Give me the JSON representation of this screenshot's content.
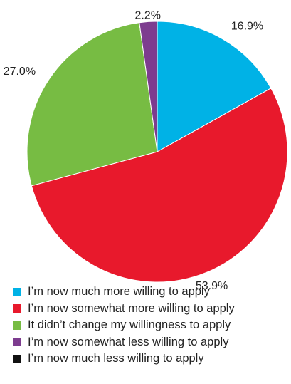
{
  "chart_data": {
    "type": "pie",
    "title": "",
    "slices": [
      {
        "label": "I’m now much more willing to apply",
        "value": 16.9,
        "value_label": "16.9%",
        "color": "#00b2e6"
      },
      {
        "label": "I’m now somewhat more willing to apply",
        "value": 53.9,
        "value_label": "53.9%",
        "color": "#e8192c"
      },
      {
        "label": "It didn’t change my willingness to apply",
        "value": 27.0,
        "value_label": "27.0%",
        "color": "#77bc43"
      },
      {
        "label": "I’m now somewhat less willing to apply",
        "value": 2.2,
        "value_label": "2.2%",
        "color": "#7d3c8f"
      },
      {
        "label": "I’m now much less willing to apply",
        "value": 0,
        "value_label": "",
        "color": "#111111"
      }
    ],
    "start_angle_deg": 0,
    "direction": "clockwise",
    "legend_position": "bottom-left"
  }
}
